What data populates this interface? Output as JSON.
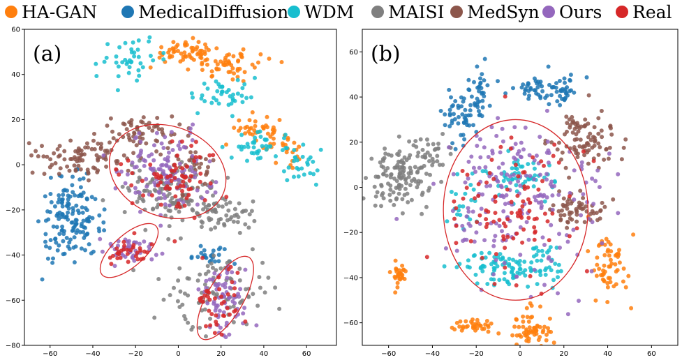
{
  "legend": [
    {
      "name": "HA-GAN",
      "color": "#ff7f0e"
    },
    {
      "name": "MedicalDiffusion",
      "color": "#1f77b4"
    },
    {
      "name": "WDM",
      "color": "#17becf"
    },
    {
      "name": "MAISI",
      "color": "#7f7f7f"
    },
    {
      "name": "MedSyn",
      "color": "#8c564b"
    },
    {
      "name": "Ours",
      "color": "#9467bd"
    },
    {
      "name": "Real",
      "color": "#d62728"
    }
  ],
  "chart_data": [
    {
      "type": "scatter",
      "tag": "(a)",
      "xlim": [
        -72,
        74
      ],
      "ylim": [
        -80,
        60
      ],
      "xticks": [
        -60,
        -40,
        -20,
        0,
        20,
        40,
        60
      ],
      "yticks": [
        -80,
        -60,
        -40,
        -20,
        0,
        20,
        40,
        60
      ],
      "ellipse_color": "#d62728",
      "ellipses": [
        {
          "cx": -5,
          "cy": -3,
          "rx": 28,
          "ry": 20,
          "angle": -20
        },
        {
          "cx": -23,
          "cy": -38,
          "rx": 17,
          "ry": 7,
          "angle": 42
        },
        {
          "cx": 22,
          "cy": -59,
          "rx": 22,
          "ry": 8,
          "angle": 60
        }
      ],
      "series": [
        {
          "name": "HA-GAN",
          "clusters": [
            {
              "cx": 3,
              "cy": 50,
              "sx": 8,
              "sy": 2.5,
              "n": 55
            },
            {
              "cx": 25,
              "cy": 45,
              "sx": 10,
              "sy": 3,
              "n": 55
            },
            {
              "cx": 38,
              "cy": 15,
              "sx": 6,
              "sy": 3,
              "n": 40
            },
            {
              "cx": 50,
              "cy": 8,
              "sx": 4,
              "sy": 3,
              "n": 20
            }
          ]
        },
        {
          "name": "MedicalDiffusion",
          "clusters": [
            {
              "cx": -50,
              "cy": -25,
              "sx": 7,
              "sy": 9,
              "n": 150
            },
            {
              "cx": 15,
              "cy": -40,
              "sx": 6,
              "sy": 2,
              "n": 25
            }
          ]
        },
        {
          "name": "WDM",
          "clusters": [
            {
              "cx": -22,
              "cy": 46,
              "sx": 7,
              "sy": 5,
              "n": 40
            },
            {
              "cx": 22,
              "cy": 32,
              "sx": 7,
              "sy": 4,
              "n": 40
            },
            {
              "cx": 38,
              "cy": 8,
              "sx": 8,
              "sy": 3,
              "n": 40
            },
            {
              "cx": 58,
              "cy": 0,
              "sx": 4,
              "sy": 4,
              "n": 25
            }
          ]
        },
        {
          "name": "MAISI",
          "clusters": [
            {
              "cx": -5,
              "cy": -12,
              "sx": 12,
              "sy": 7,
              "n": 120
            },
            {
              "cx": 20,
              "cy": -22,
              "sx": 9,
              "sy": 4,
              "n": 60
            },
            {
              "cx": 20,
              "cy": -55,
              "sx": 14,
              "sy": 9,
              "n": 90
            }
          ]
        },
        {
          "name": "MedSyn",
          "clusters": [
            {
              "cx": -45,
              "cy": 3,
              "sx": 10,
              "sy": 4,
              "n": 90
            },
            {
              "cx": -15,
              "cy": 15,
              "sx": 8,
              "sy": 5,
              "n": 60
            },
            {
              "cx": 5,
              "cy": -2,
              "sx": 6,
              "sy": 6,
              "n": 40
            }
          ]
        },
        {
          "name": "Ours",
          "clusters": [
            {
              "cx": -5,
              "cy": -3,
              "sx": 11,
              "sy": 8,
              "n": 120
            },
            {
              "cx": -23,
              "cy": -38,
              "sx": 6,
              "sy": 3,
              "n": 45
            },
            {
              "cx": 22,
              "cy": -59,
              "sx": 6,
              "sy": 8,
              "n": 70
            }
          ]
        },
        {
          "name": "Real",
          "clusters": [
            {
              "cx": -5,
              "cy": -5,
              "sx": 12,
              "sy": 9,
              "n": 70
            },
            {
              "cx": -23,
              "cy": -38,
              "sx": 6,
              "sy": 3,
              "n": 30
            },
            {
              "cx": 20,
              "cy": -60,
              "sx": 6,
              "sy": 8,
              "n": 40
            }
          ]
        }
      ]
    },
    {
      "type": "scatter",
      "tag": "(b)",
      "xlim": [
        -72,
        72
      ],
      "ylim": [
        -70,
        70
      ],
      "xticks": [
        -60,
        -40,
        -20,
        0,
        20,
        40,
        60
      ],
      "yticks": [
        -60,
        -40,
        -20,
        0,
        20,
        40,
        60
      ],
      "ellipse_color": "#d62728",
      "ellipses": [
        {
          "cx": -2,
          "cy": -10,
          "rx": 33,
          "ry": 40,
          "angle": 0
        }
      ],
      "series": [
        {
          "name": "HA-GAN",
          "clusters": [
            {
              "cx": -55,
              "cy": -39,
              "sx": 2,
              "sy": 3,
              "n": 30
            },
            {
              "cx": -22,
              "cy": -61,
              "sx": 5,
              "sy": 1.5,
              "n": 35
            },
            {
              "cx": 5,
              "cy": -63,
              "sx": 5,
              "sy": 4,
              "n": 60
            },
            {
              "cx": 40,
              "cy": -35,
              "sx": 4,
              "sy": 7,
              "n": 60
            }
          ]
        },
        {
          "name": "MedicalDiffusion",
          "clusters": [
            {
              "cx": -28,
              "cy": 32,
              "sx": 4,
              "sy": 7,
              "n": 50
            },
            {
              "cx": -18,
              "cy": 42,
              "sx": 2,
              "sy": 6,
              "n": 35
            },
            {
              "cx": 15,
              "cy": 44,
              "sx": 8,
              "sy": 3,
              "n": 70
            }
          ]
        },
        {
          "name": "WDM",
          "clusters": [
            {
              "cx": -5,
              "cy": -35,
              "sx": 12,
              "sy": 4,
              "n": 110
            },
            {
              "cx": 0,
              "cy": 5,
              "sx": 8,
              "sy": 5,
              "n": 55
            },
            {
              "cx": -25,
              "cy": -10,
              "sx": 4,
              "sy": 8,
              "n": 20
            }
          ]
        },
        {
          "name": "MAISI",
          "clusters": [
            {
              "cx": -55,
              "cy": 5,
              "sx": 9,
              "sy": 7,
              "n": 130
            },
            {
              "cx": -40,
              "cy": 15,
              "sx": 5,
              "sy": 4,
              "n": 30
            }
          ]
        },
        {
          "name": "MedSyn",
          "clusters": [
            {
              "cx": 30,
              "cy": 22,
              "sx": 7,
              "sy": 6,
              "n": 90
            },
            {
              "cx": 25,
              "cy": -10,
              "sx": 6,
              "sy": 4,
              "n": 60
            }
          ]
        },
        {
          "name": "Ours",
          "clusters": [
            {
              "cx": 0,
              "cy": -5,
              "sx": 16,
              "sy": 18,
              "n": 200
            }
          ]
        },
        {
          "name": "Real",
          "clusters": [
            {
              "cx": -5,
              "cy": -10,
              "sx": 15,
              "sy": 16,
              "n": 100
            }
          ]
        }
      ]
    }
  ]
}
